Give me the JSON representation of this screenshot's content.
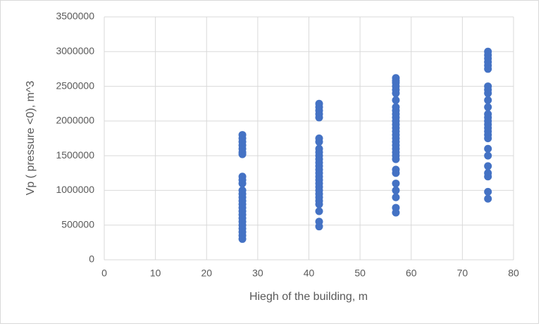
{
  "chart_data": {
    "type": "scatter",
    "xlabel": "Hiegh of the building, m",
    "ylabel": "Vp ( pressure <0), m^3",
    "color": "#4472c4",
    "grid": true,
    "xlim": [
      0,
      80
    ],
    "xticks": [
      0,
      10,
      20,
      30,
      40,
      50,
      60,
      70,
      80
    ],
    "ylim": [
      0,
      3500000
    ],
    "yticks": [
      0,
      500000,
      1000000,
      1500000,
      2000000,
      2500000,
      3000000,
      3500000
    ],
    "x": [
      27,
      27,
      27,
      27,
      27,
      27,
      27,
      27,
      27,
      27,
      27,
      27,
      27,
      27,
      27,
      27,
      27,
      27,
      27,
      27,
      27,
      27,
      27,
      27,
      27,
      42,
      42,
      42,
      42,
      42,
      42,
      42,
      42,
      42,
      42,
      42,
      42,
      42,
      42,
      42,
      42,
      42,
      42,
      42,
      42,
      42,
      42,
      42,
      42,
      42,
      42,
      42,
      57,
      57,
      57,
      57,
      57,
      57,
      57,
      57,
      57,
      57,
      57,
      57,
      57,
      57,
      57,
      57,
      57,
      57,
      57,
      57,
      57,
      57,
      57,
      57,
      57,
      57,
      57,
      57,
      57,
      57,
      75,
      75,
      75,
      75,
      75,
      75,
      75,
      75,
      75,
      75,
      75,
      75,
      75,
      75,
      75,
      75,
      75,
      75,
      75,
      75,
      75,
      75,
      75,
      75,
      75,
      75
    ],
    "values": [
      1800000,
      1750000,
      1700000,
      1650000,
      1600000,
      1550000,
      1520000,
      1200000,
      1150000,
      1100000,
      1000000,
      950000,
      900000,
      850000,
      800000,
      750000,
      700000,
      650000,
      600000,
      550000,
      500000,
      450000,
      400000,
      350000,
      300000,
      2250000,
      2200000,
      2150000,
      2100000,
      2050000,
      1750000,
      1700000,
      1600000,
      1550000,
      1500000,
      1450000,
      1400000,
      1350000,
      1300000,
      1250000,
      1200000,
      1150000,
      1100000,
      1050000,
      1000000,
      950000,
      900000,
      850000,
      800000,
      700000,
      550000,
      480000,
      2620000,
      2580000,
      2550000,
      2500000,
      2450000,
      2400000,
      2300000,
      2200000,
      2150000,
      2100000,
      2050000,
      2000000,
      1950000,
      1900000,
      1850000,
      1800000,
      1750000,
      1700000,
      1650000,
      1600000,
      1550000,
      1500000,
      1450000,
      1300000,
      1250000,
      1100000,
      1000000,
      900000,
      750000,
      680000,
      3000000,
      2950000,
      2900000,
      2850000,
      2800000,
      2750000,
      2500000,
      2450000,
      2400000,
      2300000,
      2200000,
      2100000,
      2050000,
      2000000,
      1950000,
      1900000,
      1850000,
      1800000,
      1750000,
      1600000,
      1500000,
      1350000,
      1250000,
      1200000,
      980000,
      880000
    ]
  }
}
